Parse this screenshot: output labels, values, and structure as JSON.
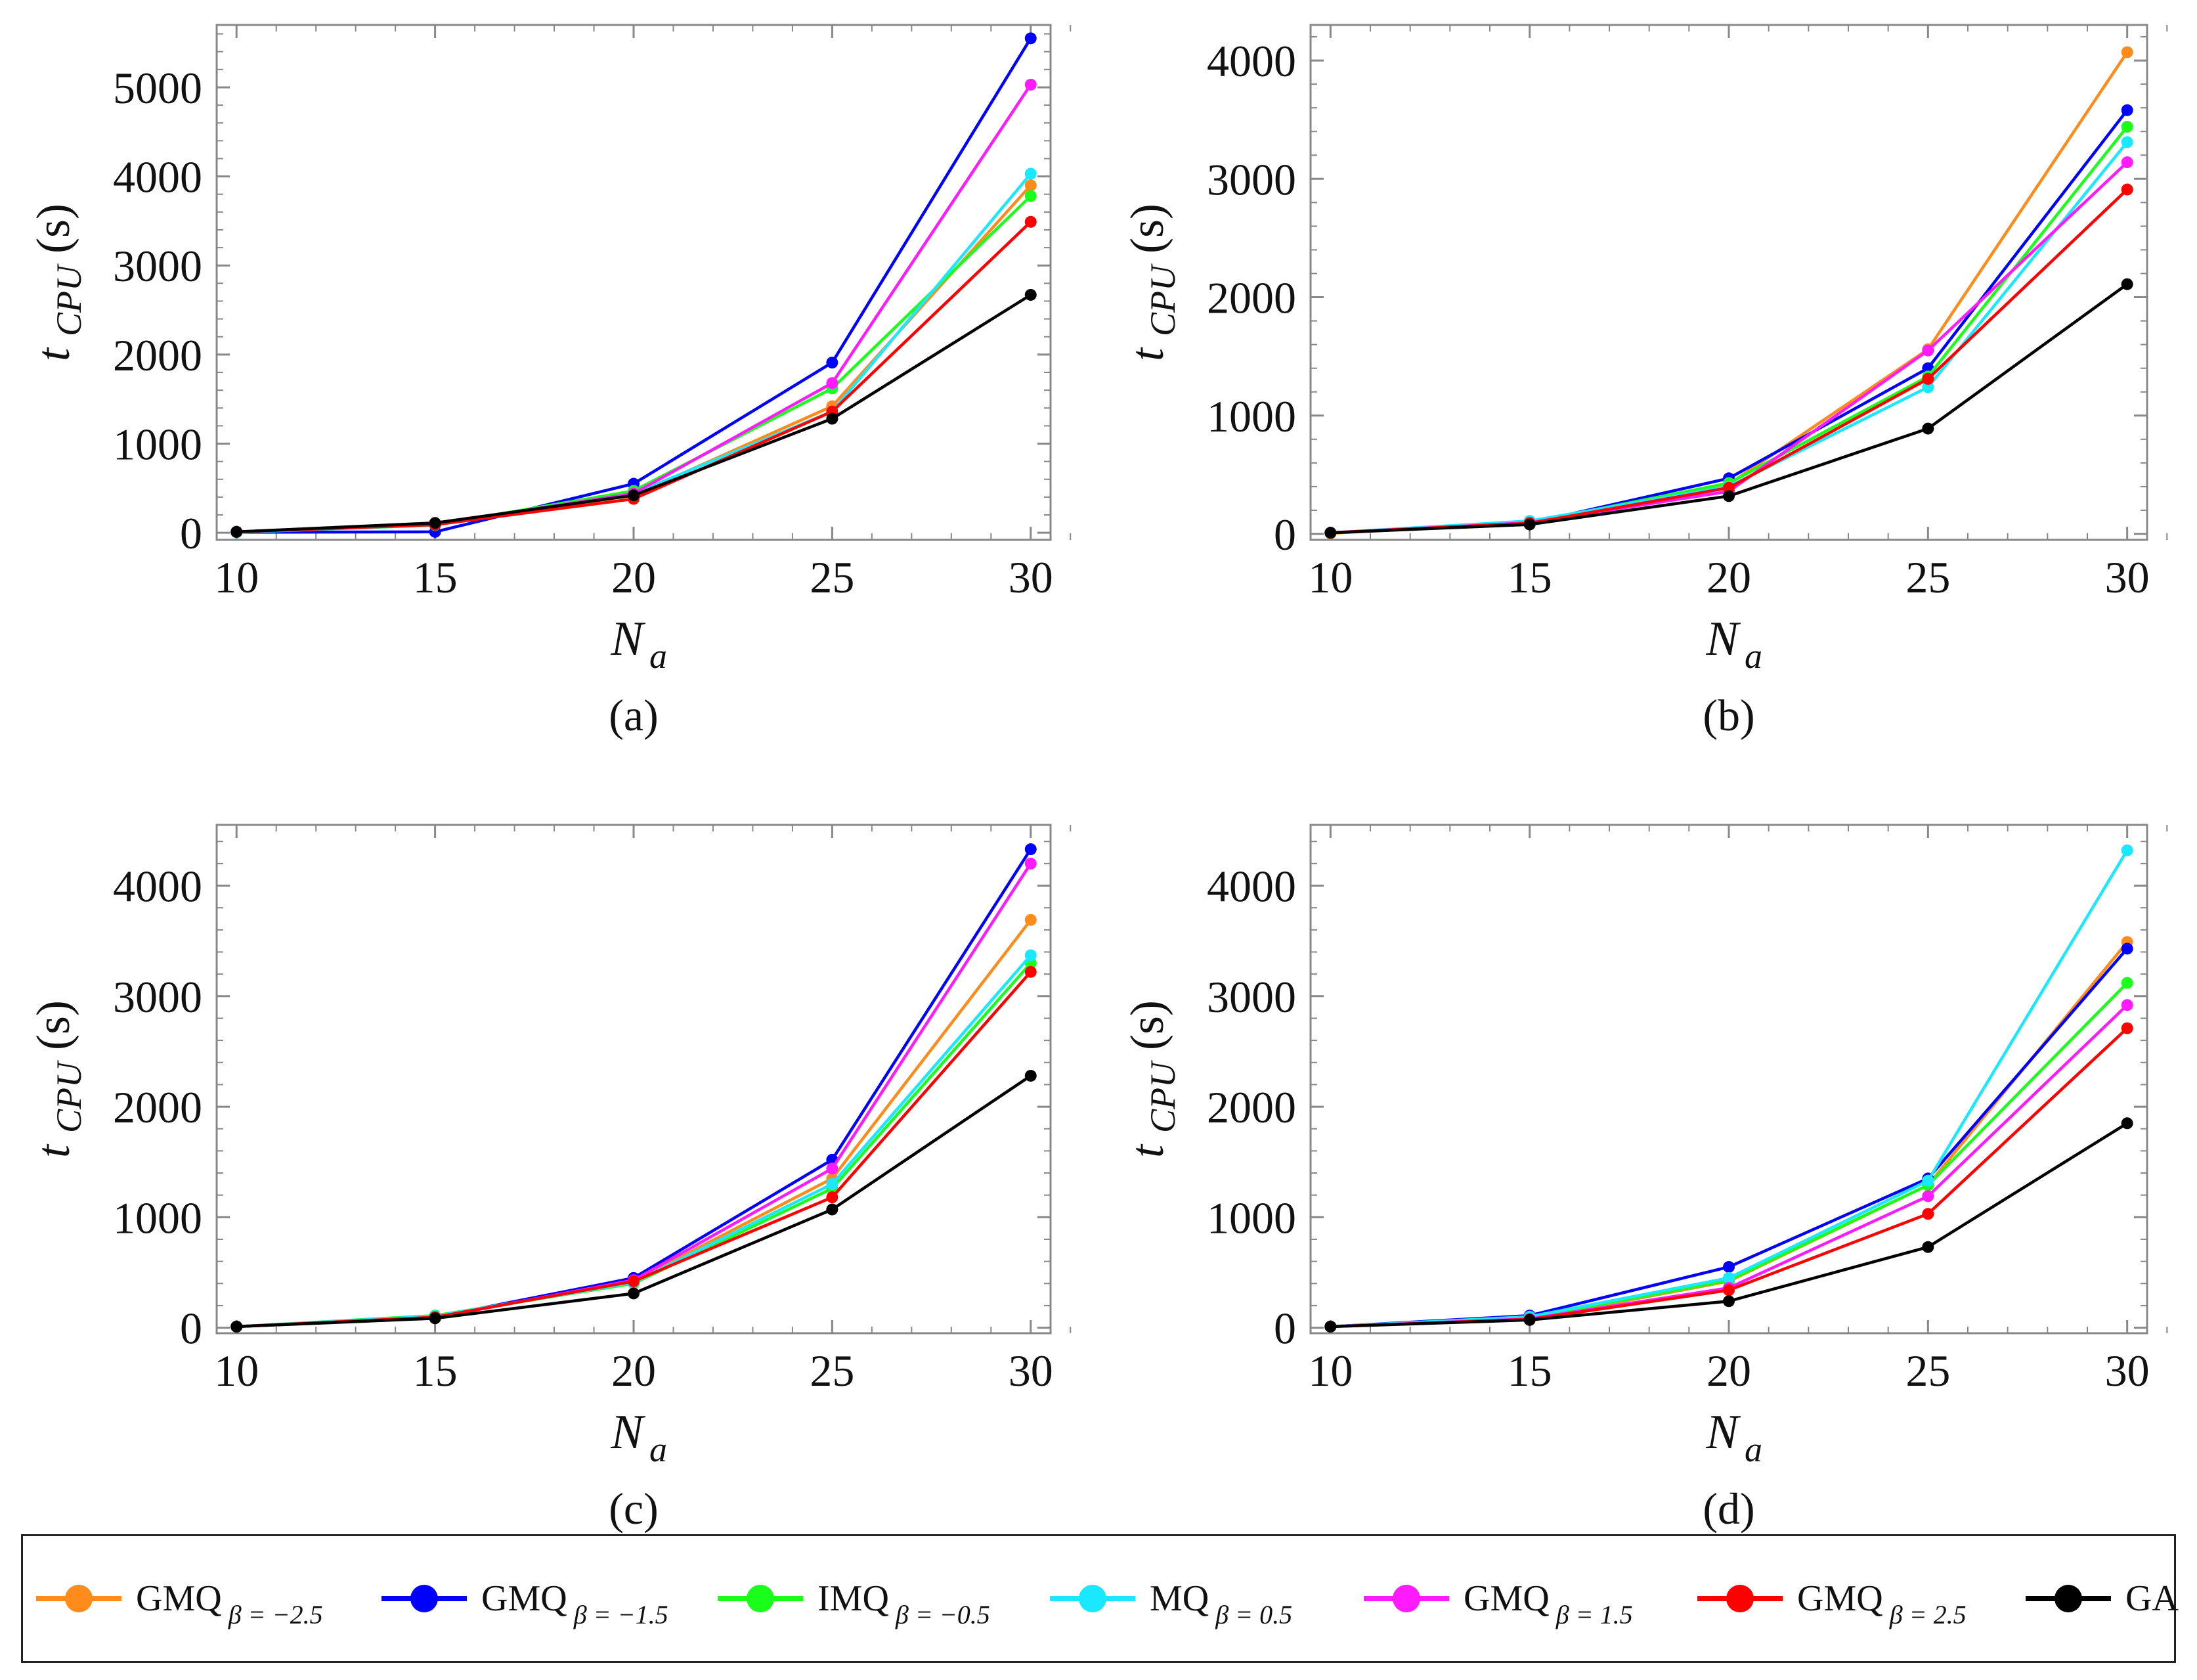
{
  "chart_data": [
    {
      "type": "line",
      "title": "",
      "caption": "(a)",
      "xlabel": "N",
      "xlabel_sub": "a",
      "ylabel": "t",
      "ylabel_sub": "CPU",
      "ylabel_unit": "(s)",
      "x": [
        10,
        15,
        20,
        25,
        30
      ],
      "xlim": [
        9.5,
        30.5
      ],
      "ylim": [
        -80,
        5700
      ],
      "yticks": [
        0,
        1000,
        2000,
        3000,
        4000,
        5000
      ],
      "xticks": [
        10,
        15,
        20,
        25,
        30
      ],
      "series": [
        {
          "name": "GMQ β=−2.5",
          "color": "#ff8c1a",
          "values": [
            10,
            90,
            420,
            1420,
            3900
          ]
        },
        {
          "name": "GMQ β=−1.5",
          "color": "#0000ff",
          "values": [
            5,
            10,
            550,
            1910,
            5550
          ]
        },
        {
          "name": "IMQ β=−0.5",
          "color": "#1aff1a",
          "values": [
            5,
            85,
            470,
            1620,
            3780
          ]
        },
        {
          "name": "MQ β=0.5",
          "color": "#1ae8ff",
          "values": [
            5,
            90,
            440,
            1360,
            4030
          ]
        },
        {
          "name": "GMQ β=1.5",
          "color": "#ff1aff",
          "values": [
            10,
            95,
            440,
            1680,
            5030
          ]
        },
        {
          "name": "GMQ β=2.5",
          "color": "#ff0000",
          "values": [
            10,
            90,
            380,
            1360,
            3490
          ]
        },
        {
          "name": "GA",
          "color": "#000000",
          "values": [
            10,
            110,
            420,
            1280,
            2670
          ]
        }
      ]
    },
    {
      "type": "line",
      "title": "",
      "caption": "(b)",
      "xlabel": "N",
      "xlabel_sub": "a",
      "ylabel": "t",
      "ylabel_sub": "CPU",
      "ylabel_unit": "(s)",
      "x": [
        10,
        15,
        20,
        25,
        30
      ],
      "xlim": [
        9.5,
        30.5
      ],
      "ylim": [
        -50,
        4300
      ],
      "yticks": [
        0,
        1000,
        2000,
        3000,
        4000
      ],
      "xticks": [
        10,
        15,
        20,
        25,
        30
      ],
      "series": [
        {
          "name": "GMQ β=−2.5",
          "color": "#ff8c1a",
          "values": [
            5,
            95,
            420,
            1560,
            4070
          ]
        },
        {
          "name": "GMQ β=−1.5",
          "color": "#0000ff",
          "values": [
            10,
            90,
            470,
            1400,
            3580
          ]
        },
        {
          "name": "IMQ β=−0.5",
          "color": "#1aff1a",
          "values": [
            10,
            95,
            430,
            1330,
            3440
          ]
        },
        {
          "name": "MQ β=0.5",
          "color": "#1ae8ff",
          "values": [
            10,
            110,
            400,
            1240,
            3310
          ]
        },
        {
          "name": "GMQ β=1.5",
          "color": "#ff1aff",
          "values": [
            10,
            95,
            360,
            1550,
            3140
          ]
        },
        {
          "name": "GMQ β=2.5",
          "color": "#ff0000",
          "values": [
            10,
            90,
            390,
            1310,
            2910
          ]
        },
        {
          "name": "GA",
          "color": "#000000",
          "values": [
            10,
            80,
            320,
            890,
            2110
          ]
        }
      ]
    },
    {
      "type": "line",
      "title": "",
      "caption": "(c)",
      "xlabel": "N",
      "xlabel_sub": "a",
      "ylabel": "t",
      "ylabel_sub": "CPU",
      "ylabel_unit": "(s)",
      "x": [
        10,
        15,
        20,
        25,
        30
      ],
      "xlim": [
        9.5,
        30.5
      ],
      "ylim": [
        -50,
        4550
      ],
      "yticks": [
        0,
        1000,
        2000,
        3000,
        4000
      ],
      "xticks": [
        10,
        15,
        20,
        25,
        30
      ],
      "series": [
        {
          "name": "GMQ β=−2.5",
          "color": "#ff8c1a",
          "values": [
            10,
            100,
            420,
            1350,
            3690
          ]
        },
        {
          "name": "GMQ β=−1.5",
          "color": "#0000ff",
          "values": [
            10,
            95,
            450,
            1520,
            4330
          ]
        },
        {
          "name": "IMQ β=−0.5",
          "color": "#1aff1a",
          "values": [
            10,
            110,
            400,
            1260,
            3300
          ]
        },
        {
          "name": "MQ β=0.5",
          "color": "#1ae8ff",
          "values": [
            10,
            105,
            410,
            1300,
            3370
          ]
        },
        {
          "name": "GMQ β=1.5",
          "color": "#ff1aff",
          "values": [
            10,
            90,
            430,
            1440,
            4200
          ]
        },
        {
          "name": "GMQ β=2.5",
          "color": "#ff0000",
          "values": [
            10,
            95,
            420,
            1180,
            3220
          ]
        },
        {
          "name": "GA",
          "color": "#000000",
          "values": [
            10,
            85,
            310,
            1070,
            2280
          ]
        }
      ]
    },
    {
      "type": "line",
      "title": "",
      "caption": "(d)",
      "xlabel": "N",
      "xlabel_sub": "a",
      "ylabel": "t",
      "ylabel_sub": "CPU",
      "ylabel_unit": "(s)",
      "x": [
        10,
        15,
        20,
        25,
        30
      ],
      "xlim": [
        9.5,
        30.5
      ],
      "ylim": [
        -50,
        4550
      ],
      "yticks": [
        0,
        1000,
        2000,
        3000,
        4000
      ],
      "xticks": [
        10,
        15,
        20,
        25,
        30
      ],
      "series": [
        {
          "name": "GMQ β=−2.5",
          "color": "#ff8c1a",
          "values": [
            10,
            80,
            420,
            1290,
            3490
          ]
        },
        {
          "name": "GMQ β=−1.5",
          "color": "#0000ff",
          "values": [
            10,
            110,
            550,
            1350,
            3430
          ]
        },
        {
          "name": "IMQ β=−0.5",
          "color": "#1aff1a",
          "values": [
            10,
            90,
            430,
            1290,
            3120
          ]
        },
        {
          "name": "MQ β=0.5",
          "color": "#1ae8ff",
          "values": [
            10,
            100,
            450,
            1330,
            4320
          ]
        },
        {
          "name": "GMQ β=1.5",
          "color": "#ff1aff",
          "values": [
            10,
            80,
            360,
            1190,
            2920
          ]
        },
        {
          "name": "GMQ β=2.5",
          "color": "#ff0000",
          "values": [
            10,
            75,
            340,
            1030,
            2710
          ]
        },
        {
          "name": "GA",
          "color": "#000000",
          "values": [
            10,
            70,
            240,
            730,
            1850
          ]
        }
      ]
    }
  ],
  "legend": [
    {
      "label": "GMQ",
      "sub": "β = −2.5",
      "color": "#ff8c1a"
    },
    {
      "label": "GMQ",
      "sub": "β = −1.5",
      "color": "#0000ff"
    },
    {
      "label": "IMQ",
      "sub": "β = −0.5",
      "color": "#1aff1a"
    },
    {
      "label": "MQ",
      "sub": "β = 0.5",
      "color": "#1ae8ff"
    },
    {
      "label": "GMQ",
      "sub": "β = 1.5",
      "color": "#ff1aff"
    },
    {
      "label": "GMQ",
      "sub": "β = 2.5",
      "color": "#ff0000"
    },
    {
      "label": "GA",
      "sub": "",
      "color": "#000000"
    }
  ]
}
